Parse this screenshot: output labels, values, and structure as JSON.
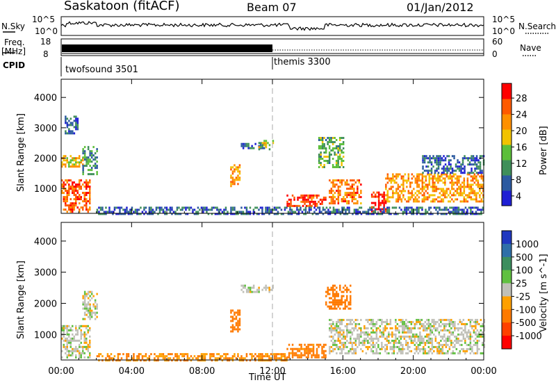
{
  "header": {
    "station": "Saskatoon (fitACF)",
    "beam": "Beam 07",
    "date": "01/Jan/2012"
  },
  "strips": {
    "nsky_label": "N.Sky",
    "nsearch_label": "N.Search",
    "noise_ticks_left": [
      "10^5",
      "10^0"
    ],
    "noise_ticks_right": [
      "10^5",
      "10^0"
    ],
    "freq_label_1": "Freq.",
    "freq_label_2": "[MHz]",
    "freq_ticks": [
      "18",
      "8"
    ],
    "nave_ticks": [
      "60",
      "0"
    ],
    "nave_label": "Nave",
    "cpid_label": "CPID",
    "cpid_segments": [
      {
        "name": "twofsound 3501",
        "start_hour": 0
      },
      {
        "name": "themis 3300",
        "start_hour": 12.0
      }
    ]
  },
  "chart_data": [
    {
      "type": "heatmap",
      "title": "Power",
      "xlabel": "Time UT",
      "ylabel": "Slant Range [km]",
      "xlim": [
        0,
        24
      ],
      "ylim": [
        180,
        4600
      ],
      "x_tick_labels": [
        "00:00",
        "04:00",
        "08:00",
        "12:00",
        "16:00",
        "20:00",
        "00:00"
      ],
      "y_ticks": [
        1000,
        2000,
        3000,
        4000
      ],
      "colorbar": {
        "label": "Power [dB]",
        "tick_labels": [
          "28",
          "24",
          "20",
          "16",
          "12",
          "8",
          "4"
        ],
        "range": [
          0,
          30
        ]
      },
      "dashed_line_hour": 12.0,
      "regions": [
        {
          "t0": 0.0,
          "t1": 1.6,
          "r0": 250,
          "r1": 1300,
          "value": 24
        },
        {
          "t0": 0.0,
          "t1": 1.2,
          "r0": 1700,
          "r1": 2100,
          "value": 18
        },
        {
          "t0": 1.2,
          "t1": 2.0,
          "r0": 1500,
          "r1": 2400,
          "value": 10
        },
        {
          "t0": 0.2,
          "t1": 0.9,
          "r0": 2800,
          "r1": 3400,
          "value": 6
        },
        {
          "t0": 9.6,
          "t1": 10.1,
          "r0": 1100,
          "r1": 1800,
          "value": 20
        },
        {
          "t0": 10.2,
          "t1": 11.6,
          "r0": 2350,
          "r1": 2500,
          "value": 6
        },
        {
          "t0": 11.2,
          "t1": 12.0,
          "r0": 2300,
          "r1": 2600,
          "value": 14
        },
        {
          "t0": 12.8,
          "t1": 15.0,
          "r0": 400,
          "r1": 800,
          "value": 26
        },
        {
          "t0": 14.6,
          "t1": 16.0,
          "r0": 1700,
          "r1": 2700,
          "value": 12
        },
        {
          "t0": 15.2,
          "t1": 17.0,
          "r0": 500,
          "r1": 1300,
          "value": 22
        },
        {
          "t0": 17.6,
          "t1": 18.4,
          "r0": 250,
          "r1": 900,
          "value": 28
        },
        {
          "t0": 18.4,
          "t1": 24.0,
          "r0": 600,
          "r1": 1500,
          "value": 20
        },
        {
          "t0": 20.5,
          "t1": 24.0,
          "r0": 1500,
          "r1": 2100,
          "value": 6
        },
        {
          "t0": 2.0,
          "t1": 24.0,
          "r0": 180,
          "r1": 400,
          "value": 6
        }
      ]
    },
    {
      "type": "heatmap",
      "title": "Velocity",
      "xlabel": "Time UT",
      "ylabel": "Slant Range [km]",
      "xlim": [
        0,
        24
      ],
      "ylim": [
        180,
        4600
      ],
      "x_tick_labels": [
        "00:00",
        "04:00",
        "08:00",
        "12:00",
        "16:00",
        "20:00",
        "00:00"
      ],
      "y_ticks": [
        1000,
        2000,
        3000,
        4000
      ],
      "colorbar": {
        "label": "Velocity [m s^-1]",
        "tick_labels": [
          "1000",
          "500",
          "100",
          "25",
          "-25",
          "-100",
          "-500",
          "-1000"
        ],
        "range": [
          -1000,
          1000
        ]
      },
      "dashed_line_hour": 12.0,
      "regions": [
        {
          "t0": 0.0,
          "t1": 1.6,
          "r0": 250,
          "r1": 1300,
          "value": 0
        },
        {
          "t0": 1.2,
          "t1": 2.0,
          "r0": 1500,
          "r1": 2400,
          "value": 0
        },
        {
          "t0": 9.6,
          "t1": 10.1,
          "r0": 1100,
          "r1": 1800,
          "value": -300
        },
        {
          "t0": 10.2,
          "t1": 12.0,
          "r0": 2350,
          "r1": 2600,
          "value": 0
        },
        {
          "t0": 12.8,
          "t1": 15.0,
          "r0": 250,
          "r1": 700,
          "value": -150
        },
        {
          "t0": 15.0,
          "t1": 16.4,
          "r0": 1800,
          "r1": 2600,
          "value": -300
        },
        {
          "t0": 15.2,
          "t1": 24.0,
          "r0": 400,
          "r1": 1500,
          "value": 0
        },
        {
          "t0": 2.0,
          "t1": 12.8,
          "r0": 180,
          "r1": 400,
          "value": -100
        }
      ]
    }
  ],
  "colors": {
    "power_scale": [
      "#1f1fd4",
      "#2c5aa0",
      "#3f8f5a",
      "#5cbf3a",
      "#f2c300",
      "#ff9000",
      "#ff5a00",
      "#ff0000"
    ],
    "velocity_pos": [
      "#2038c0",
      "#2f6fa8",
      "#3c8e5e",
      "#60c040"
    ],
    "velocity_zero": "#c0c0b8",
    "velocity_neg": [
      "#ffa000",
      "#ff7a00",
      "#ff4000",
      "#ff0000"
    ]
  }
}
